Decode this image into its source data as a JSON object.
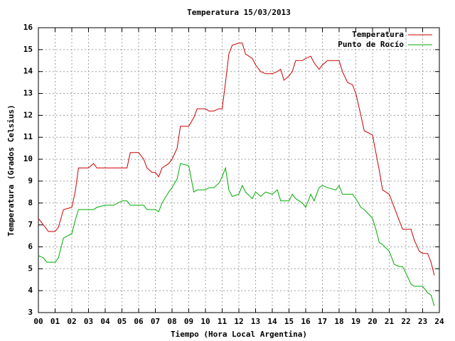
{
  "chart_data": {
    "type": "line",
    "title": "Temperatura 15/03/2013",
    "x_label": "Tiempo (Hora Local Argentina)",
    "y_label": "Temperatura (Grados Celsius)",
    "x": [
      0,
      0.3,
      0.5,
      0.6,
      1.0,
      1.2,
      1.5,
      2.0,
      2.2,
      2.4,
      3.0,
      3.3,
      3.5,
      4,
      4.5,
      5.0,
      5.3,
      5.5,
      6.0,
      6.3,
      6.5,
      6.8,
      7.0,
      7.2,
      7.4,
      7.8,
      8.0,
      8.3,
      8.5,
      9.0,
      9.3,
      9.5,
      10.0,
      10.2,
      10.5,
      10.8,
      11.0,
      11.2,
      11.4,
      11.6,
      12.0,
      12.2,
      12.4,
      12.8,
      13.0,
      13.3,
      13.6,
      14.0,
      14.3,
      14.5,
      14.7,
      15.0,
      15.2,
      15.4,
      15.8,
      16.0,
      16.3,
      16.5,
      16.8,
      17.0,
      17.3,
      17.8,
      18.0,
      18.2,
      18.5,
      18.8,
      19.0,
      19.3,
      19.5,
      20.0,
      20.2,
      20.4,
      20.6,
      21.0,
      21.3,
      21.6,
      21.8,
      22.0,
      22.3,
      22.5,
      22.8,
      23.0,
      23.3,
      23.5,
      23.7
    ],
    "series": [
      {
        "name": "Temperatura",
        "color": "#cc0000",
        "values": [
          7.3,
          7.0,
          6.8,
          6.7,
          6.7,
          6.9,
          7.7,
          7.8,
          8.5,
          9.6,
          9.6,
          9.8,
          9.6,
          9.6,
          9.6,
          9.6,
          9.6,
          10.3,
          10.3,
          10.0,
          9.6,
          9.4,
          9.4,
          9.2,
          9.6,
          9.8,
          10.0,
          10.5,
          11.5,
          11.5,
          11.9,
          12.3,
          12.3,
          12.2,
          12.2,
          12.3,
          12.3,
          13.5,
          14.8,
          15.2,
          15.3,
          15.3,
          14.8,
          14.6,
          14.3,
          14.0,
          13.9,
          13.9,
          14.0,
          14.1,
          13.6,
          13.8,
          14.0,
          14.5,
          14.5,
          14.6,
          14.7,
          14.4,
          14.1,
          14.3,
          14.5,
          14.5,
          14.5,
          14.0,
          13.5,
          13.4,
          13.0,
          12.0,
          11.3,
          11.1,
          10.3,
          9.5,
          8.6,
          8.4,
          7.8,
          7.2,
          6.8,
          6.8,
          6.8,
          6.3,
          5.8,
          5.7,
          5.7,
          5.3,
          4.7
        ]
      },
      {
        "name": "Punto de Rocío",
        "color": "#00aa00",
        "values": [
          5.6,
          5.5,
          5.3,
          5.3,
          5.3,
          5.5,
          6.4,
          6.6,
          7.2,
          7.7,
          7.7,
          7.7,
          7.8,
          7.9,
          7.9,
          8.1,
          8.1,
          7.9,
          7.9,
          7.9,
          7.7,
          7.7,
          7.7,
          7.6,
          8.0,
          8.5,
          8.7,
          9.1,
          9.8,
          9.7,
          8.5,
          8.6,
          8.6,
          8.7,
          8.7,
          8.9,
          9.2,
          9.6,
          8.6,
          8.3,
          8.4,
          8.8,
          8.5,
          8.2,
          8.5,
          8.3,
          8.5,
          8.4,
          8.6,
          8.1,
          8.1,
          8.1,
          8.4,
          8.2,
          8.0,
          7.8,
          8.4,
          8.1,
          8.7,
          8.8,
          8.7,
          8.6,
          8.8,
          8.4,
          8.4,
          8.4,
          8.2,
          7.8,
          7.7,
          7.3,
          6.8,
          6.2,
          6.1,
          5.8,
          5.2,
          5.1,
          5.1,
          4.8,
          4.3,
          4.2,
          4.2,
          4.2,
          3.9,
          3.8,
          3.3
        ]
      }
    ],
    "xlim": [
      0,
      24
    ],
    "xticks": [
      {
        "value": 0,
        "label": "00"
      },
      {
        "value": 1,
        "label": "01"
      },
      {
        "value": 2,
        "label": "02"
      },
      {
        "value": 3,
        "label": "03"
      },
      {
        "value": 4,
        "label": "04"
      },
      {
        "value": 5,
        "label": "05"
      },
      {
        "value": 6,
        "label": "06"
      },
      {
        "value": 7,
        "label": "07"
      },
      {
        "value": 8,
        "label": "08"
      },
      {
        "value": 9,
        "label": "09"
      },
      10,
      11,
      12,
      13,
      14,
      15,
      16,
      17,
      18,
      19,
      20,
      21,
      22,
      23,
      24
    ],
    "ylim": [
      3,
      16
    ],
    "yticks": [
      3,
      4,
      5,
      6,
      7,
      8,
      9,
      10,
      11,
      12,
      13,
      14,
      15,
      16
    ],
    "grid": true,
    "legend": "top-right"
  }
}
